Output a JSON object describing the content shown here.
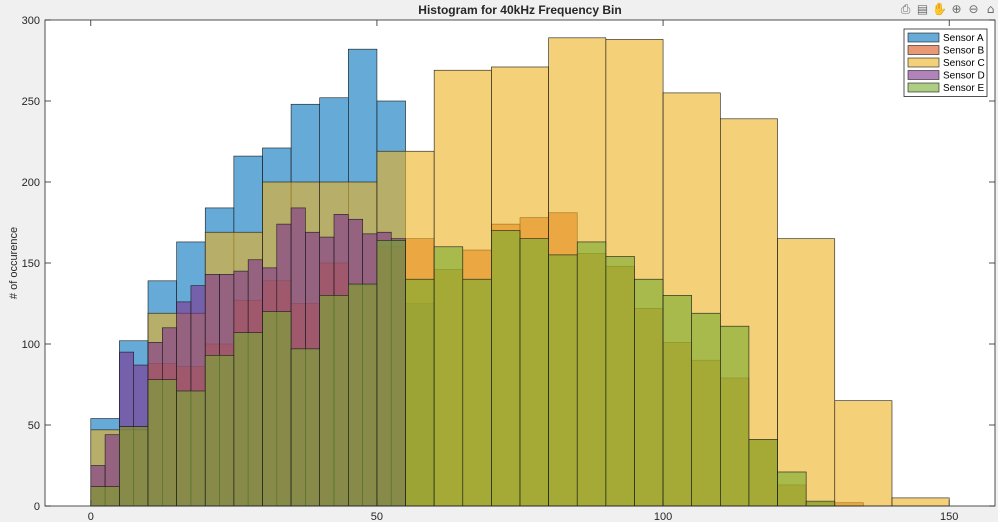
{
  "toolbar": {
    "icons": [
      "export-icon",
      "brush-icon",
      "pan-icon",
      "zoom-in-icon",
      "zoom-out-icon",
      "home-icon"
    ]
  },
  "chart_data": {
    "type": "bar",
    "subtype": "overlaid-histogram",
    "title": "Histogram for 40kHz Frequency Bin",
    "xlabel": "",
    "ylabel": "# of occurence",
    "xlim": [
      -8,
      158
    ],
    "ylim": [
      0,
      300
    ],
    "xticks": [
      0,
      50,
      100,
      150
    ],
    "yticks": [
      0,
      50,
      100,
      150,
      200,
      250,
      300
    ],
    "grid": false,
    "legend_position": "top-right",
    "series": [
      {
        "name": "Sensor A",
        "color": "#0072BD",
        "bin_edges": [
          0,
          5,
          10,
          15,
          20,
          25,
          30,
          35,
          40,
          45,
          50,
          55,
          60
        ],
        "values": [
          54,
          102,
          139,
          163,
          184,
          216,
          221,
          248,
          252,
          282,
          250,
          125
        ]
      },
      {
        "name": "Sensor B",
        "color": "#D95319",
        "bin_edges": [
          0,
          5,
          10,
          15,
          20,
          25,
          30,
          35,
          40,
          45,
          50,
          55,
          60,
          65,
          70,
          75,
          80,
          85,
          90,
          95,
          100,
          105,
          110,
          115,
          120,
          125,
          130,
          135,
          140
        ],
        "values": [
          12,
          49,
          88,
          86,
          100,
          127,
          139,
          125,
          150,
          136,
          160,
          165,
          146,
          158,
          174,
          178,
          181,
          156,
          148,
          122,
          101,
          90,
          79,
          41,
          13,
          2,
          2,
          0
        ]
      },
      {
        "name": "Sensor C",
        "color": "#EDB120",
        "bin_edges": [
          0,
          10,
          20,
          30,
          40,
          50,
          60,
          70,
          80,
          90,
          100,
          110,
          120,
          130,
          140,
          150
        ],
        "values": [
          47,
          119,
          169,
          200,
          200,
          219,
          269,
          271,
          289,
          288,
          255,
          239,
          165,
          65,
          5
        ]
      },
      {
        "name": "Sensor D",
        "color": "#7E2F8E",
        "bin_edges": [
          0,
          2.5,
          5,
          7.5,
          10,
          12.5,
          15,
          17.5,
          20,
          22.5,
          25,
          27.5,
          30,
          32.5,
          35,
          37.5,
          40,
          42.5,
          45,
          47.5,
          50,
          52.5,
          55
        ],
        "values": [
          25,
          44,
          95,
          87,
          101,
          110,
          126,
          136,
          143,
          143,
          145,
          152,
          147,
          174,
          184,
          169,
          166,
          180,
          177,
          168,
          169,
          165
        ]
      },
      {
        "name": "Sensor E",
        "color": "#77AC30",
        "bin_edges": [
          0,
          5,
          10,
          15,
          20,
          25,
          30,
          35,
          40,
          45,
          50,
          55,
          60,
          65,
          70,
          75,
          80,
          85,
          90,
          95,
          100,
          105,
          110,
          115,
          120,
          125,
          130,
          135,
          140
        ],
        "values": [
          12,
          49,
          78,
          71,
          93,
          107,
          120,
          97,
          130,
          137,
          164,
          140,
          160,
          140,
          170,
          165,
          155,
          163,
          154,
          140,
          130,
          119,
          111,
          41,
          21,
          3,
          0,
          0
        ]
      }
    ]
  }
}
